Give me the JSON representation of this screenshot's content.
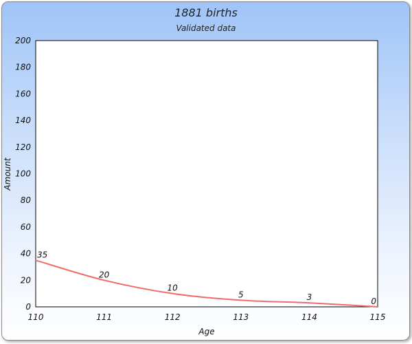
{
  "chart_data": {
    "type": "line",
    "title": "1881 births",
    "subtitle": "Validated data",
    "xlabel": "Age",
    "ylabel": "Amount",
    "x": [
      110,
      111,
      112,
      113,
      114,
      115
    ],
    "series": [
      {
        "values": [
          35,
          20,
          10,
          5,
          3,
          0
        ],
        "color": "#f06a6a"
      }
    ],
    "xlim": [
      110,
      115
    ],
    "ylim": [
      0,
      200
    ],
    "yticks": [
      0,
      20,
      40,
      60,
      80,
      100,
      120,
      140,
      160,
      180,
      200
    ],
    "xticks": [
      110,
      111,
      112,
      113,
      114,
      115
    ],
    "grid": false,
    "legend": "none",
    "data_labels": true
  }
}
